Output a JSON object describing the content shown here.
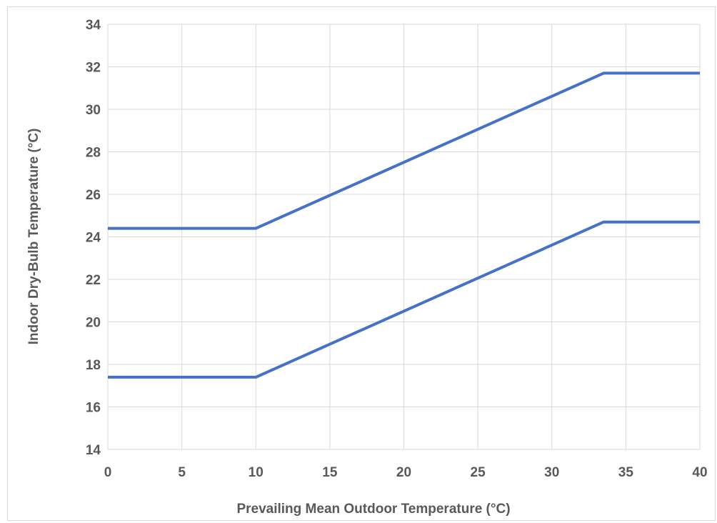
{
  "chart_data": {
    "type": "line",
    "title": "",
    "xlabel": "Prevailing Mean Outdoor Temperature (°C)",
    "ylabel": "Indoor Dry-Bulb Temperature (°C)",
    "xlim": [
      0,
      40
    ],
    "ylim": [
      14,
      34
    ],
    "xticks": [
      0,
      5,
      10,
      15,
      20,
      25,
      30,
      35,
      40
    ],
    "yticks": [
      14,
      16,
      18,
      20,
      22,
      24,
      26,
      28,
      30,
      32,
      34
    ],
    "grid": true,
    "legend": "none",
    "line_color": "#4472C4",
    "series": [
      {
        "x": [
          0,
          10,
          33.5,
          40
        ],
        "y": [
          24.4,
          24.4,
          31.7,
          31.7
        ]
      },
      {
        "x": [
          0,
          10,
          33.5,
          40
        ],
        "y": [
          17.4,
          17.4,
          24.7,
          24.7
        ]
      }
    ]
  }
}
